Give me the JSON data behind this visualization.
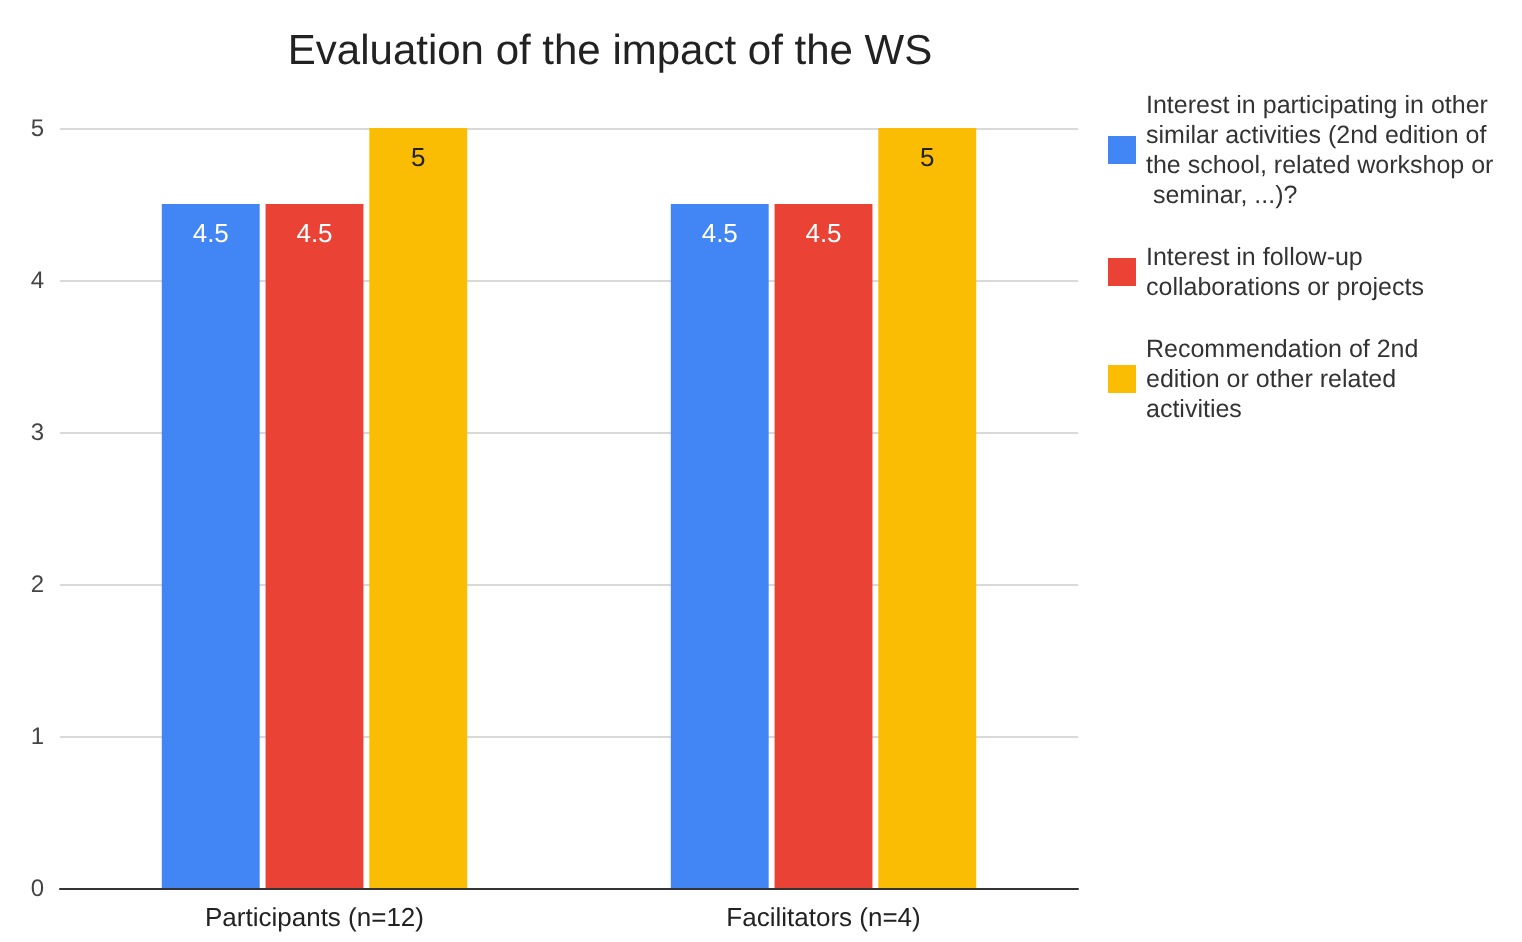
{
  "chart_data": {
    "type": "bar",
    "title": "Evaluation of the impact of the WS",
    "categories": [
      "Participants (n=12)",
      "Facilitators (n=4)"
    ],
    "series": [
      {
        "name": "Interest in participating in other similar activities (2nd edition of the school, related workshop or seminar, ...)?",
        "color": "#4285f4",
        "values": [
          4.5,
          4.5
        ]
      },
      {
        "name": "Interest in follow-up collaborations or projects",
        "color": "#ea4335",
        "values": [
          4.5,
          4.5
        ]
      },
      {
        "name": "Recommendation of 2nd edition or other related activities",
        "color": "#fbbc04",
        "values": [
          5,
          5
        ]
      }
    ],
    "ylim": [
      0,
      5
    ],
    "yticks": [
      0,
      1,
      2,
      3,
      4,
      5
    ],
    "grid": "y",
    "legend": "right",
    "data_labels": true
  }
}
